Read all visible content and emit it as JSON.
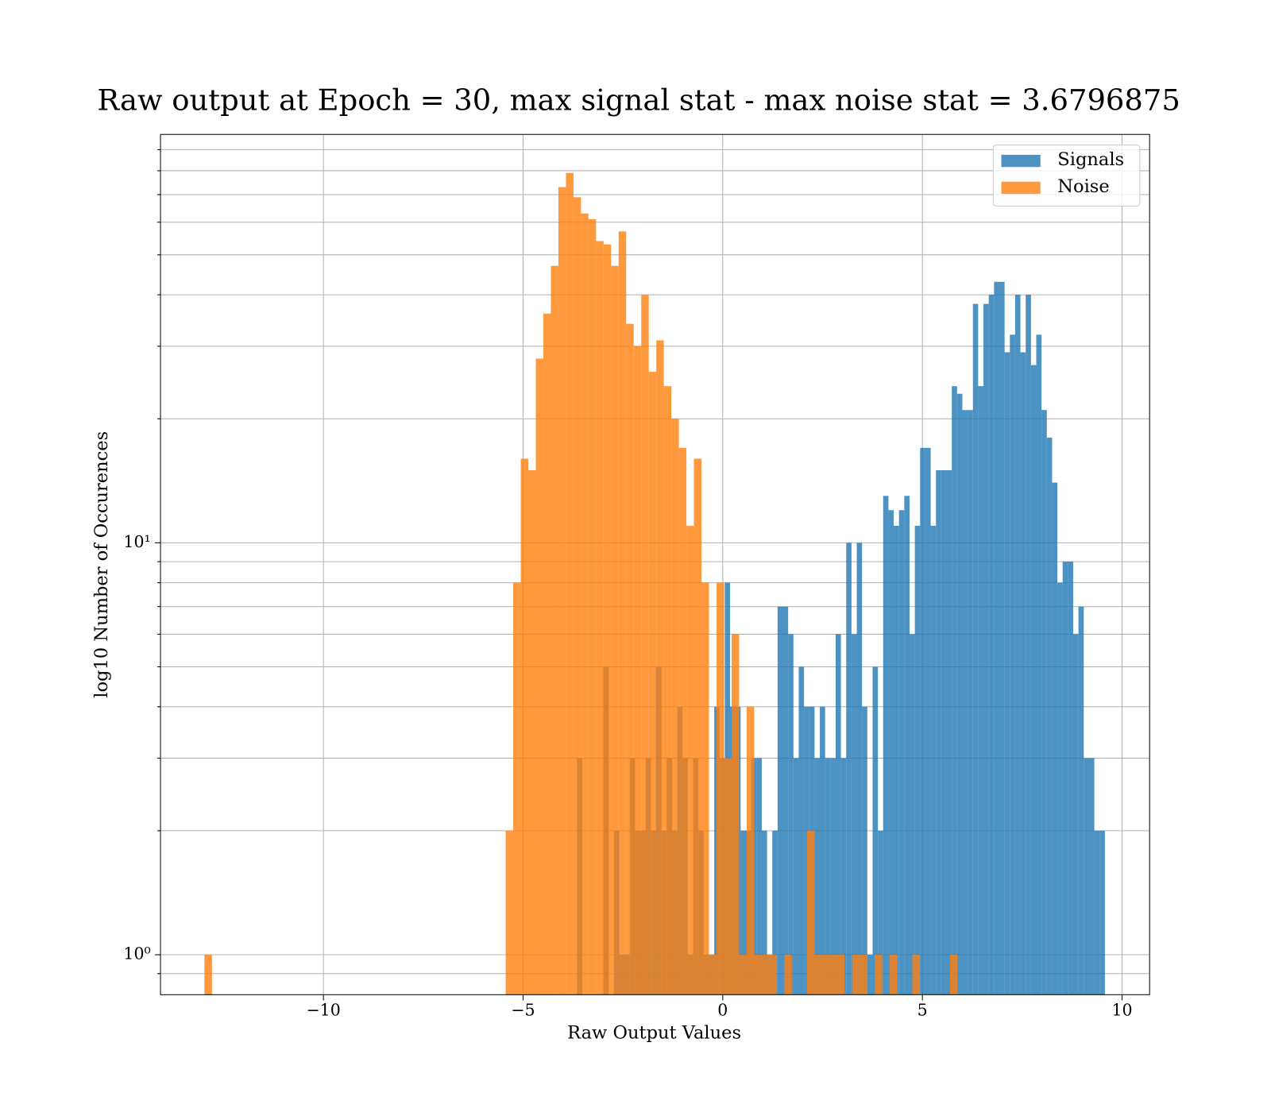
{
  "chart_data": {
    "type": "histogram",
    "title": "Raw output at Epoch = 30, max signal stat - max noise stat = 3.6796875",
    "x_label": "Raw Output Values",
    "y_label": "log10 Number of Occurences",
    "xlim": [
      -14.08,
      10.69
    ],
    "ylim": [
      0.8,
      98
    ],
    "xticks": [
      {
        "value": -10,
        "label": "−10"
      },
      {
        "value": -5,
        "label": "−5"
      },
      0,
      5,
      10
    ],
    "yticks": [
      {
        "value": 1,
        "label": "10⁰"
      },
      {
        "value": 10,
        "label": "10¹"
      }
    ],
    "yminorticks": [
      0.9,
      2,
      3,
      4,
      5,
      6,
      7,
      8,
      9,
      20,
      30,
      40,
      50,
      60,
      70,
      80,
      90
    ],
    "log_y": true,
    "grid": true,
    "legend": "upper right",
    "alpha": 0.8,
    "series": [
      {
        "name": "Signals",
        "color": "#1f77b4",
        "bins": [
          -3.65,
          -3.5178,
          -3.3856,
          -3.2534,
          -3.1212,
          -2.989,
          -2.8568,
          -2.7246,
          -2.5924,
          -2.4602,
          -2.328,
          -2.1958,
          -2.0636,
          -1.9314,
          -1.7992,
          -1.667,
          -1.5348,
          -1.4026,
          -1.2704,
          -1.1382,
          -1.006,
          -0.8738,
          -0.7416,
          -0.6094,
          -0.4772,
          -0.345,
          -0.2128,
          -0.0806,
          0.0516,
          0.1838,
          0.316,
          0.4482,
          0.5804,
          0.7126,
          0.8448,
          0.977,
          1.1092,
          1.2414,
          1.3736,
          1.5058,
          1.638,
          1.7702,
          1.9024,
          2.0346,
          2.1668,
          2.299,
          2.4312,
          2.5634,
          2.6956,
          2.8278,
          2.96,
          3.0922,
          3.2244,
          3.3566,
          3.4888,
          3.621,
          3.7532,
          3.8854,
          4.0176,
          4.1498,
          4.282,
          4.4142,
          4.5464,
          4.6786,
          4.8108,
          4.943,
          5.0752,
          5.2074,
          5.3396,
          5.4718,
          5.604,
          5.7362,
          5.8684,
          6.0006,
          6.1328,
          6.265,
          6.3972,
          6.5294,
          6.6616,
          6.7938,
          6.926,
          7.0582,
          7.1904,
          7.3226,
          7.4548,
          7.587,
          7.7192,
          7.8514,
          7.9836,
          8.1158,
          8.248,
          8.3802,
          8.5124,
          8.6446,
          8.7768,
          8.909,
          9.0412,
          9.1734,
          9.3056,
          9.4378,
          9.57
        ],
        "values": [
          3,
          0,
          0,
          0,
          0,
          5,
          0,
          2,
          1,
          1,
          3,
          2,
          2,
          3,
          2,
          5,
          2,
          3,
          2,
          4,
          3,
          1,
          3,
          2,
          1,
          1,
          4,
          3,
          8,
          4,
          4,
          2,
          2,
          3,
          3,
          2,
          1,
          2,
          7,
          7,
          6,
          3,
          5,
          4,
          4,
          3,
          4,
          3,
          3,
          6,
          3,
          10,
          6,
          10,
          4,
          1,
          5,
          2,
          13,
          12,
          11,
          12,
          13,
          6,
          11,
          17,
          17,
          11,
          15,
          15,
          15,
          24,
          23,
          21,
          21,
          38,
          24,
          38,
          40,
          43,
          43,
          29,
          32,
          40,
          29,
          40,
          27,
          32,
          21,
          18,
          14,
          8,
          9,
          9,
          6,
          7,
          3,
          3,
          2,
          2
        ]
      },
      {
        "name": "Noise",
        "color": "#ff7f0e",
        "bins": [
          -12.98,
          -12.7914,
          -12.6028,
          -12.4142,
          -12.2256,
          -12.037,
          -11.8484,
          -11.6598,
          -11.4712,
          -11.2826,
          -11.094,
          -10.9054,
          -10.7168,
          -10.5282,
          -10.3396,
          -10.151,
          -9.9624,
          -9.7738,
          -9.5852,
          -9.3966,
          -9.208,
          -9.0194,
          -8.8308,
          -8.6422,
          -8.4536,
          -8.265,
          -8.0764,
          -7.8878,
          -7.6992,
          -7.5106,
          -7.322,
          -7.1334,
          -6.9448,
          -6.7562,
          -6.5676,
          -6.379,
          -6.1904,
          -6.0018,
          -5.8132,
          -5.6246,
          -5.436,
          -5.2474,
          -5.0588,
          -4.8702,
          -4.6816,
          -4.493,
          -4.3044,
          -4.1158,
          -3.9272,
          -3.7386,
          -3.55,
          -3.3614,
          -3.1728,
          -2.9842,
          -2.7956,
          -2.607,
          -2.4184,
          -2.2298,
          -2.0412,
          -1.8526,
          -1.664,
          -1.4754,
          -1.2868,
          -1.0982,
          -0.9096,
          -0.721,
          -0.5324,
          -0.3438,
          -0.1552,
          0.0334,
          0.222,
          0.4106,
          0.5992,
          0.7878,
          0.9764,
          1.165,
          1.3536,
          1.5422,
          1.7308,
          1.9194,
          2.108,
          2.2966,
          2.4852,
          2.6738,
          2.8624,
          3.051,
          3.2396,
          3.4282,
          3.6168,
          3.8054,
          3.994,
          4.1826,
          4.3712,
          4.5598,
          4.7484,
          4.937,
          5.1256,
          5.3142,
          5.5028,
          5.6914,
          5.88
        ],
        "values": [
          1,
          0,
          0,
          0,
          0,
          0,
          0,
          0,
          0,
          0,
          0,
          0,
          0,
          0,
          0,
          0,
          0,
          0,
          0,
          0,
          0,
          0,
          0,
          0,
          0,
          0,
          0,
          0,
          0,
          0,
          0,
          0,
          0,
          0,
          0,
          0,
          0,
          0,
          0,
          0,
          2,
          8,
          16,
          15,
          28,
          36,
          47,
          73,
          79,
          69,
          63,
          61,
          54,
          53,
          47,
          57,
          34,
          30,
          40,
          26,
          31,
          24,
          20,
          17,
          11,
          16,
          8,
          1,
          8,
          3,
          6,
          1,
          4,
          1,
          1,
          1,
          0,
          1,
          0,
          0,
          2,
          1,
          1,
          1,
          1,
          0,
          1,
          1,
          0,
          1,
          0,
          1,
          0,
          0,
          1,
          0,
          0,
          0,
          0,
          1
        ]
      }
    ]
  }
}
